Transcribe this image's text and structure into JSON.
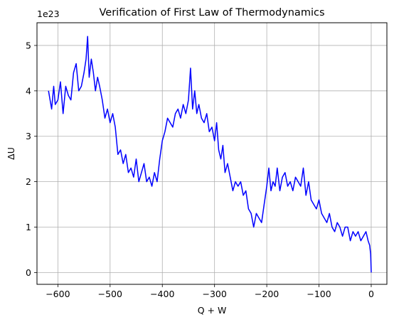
{
  "chart_data": {
    "type": "line",
    "title": "Verification of First Law of Thermodynamics",
    "xlabel": "Q + W",
    "ylabel": "ΔU",
    "y_offset_label": "1e23",
    "y_scale": 1e+23,
    "xlim": [
      -640,
      30
    ],
    "ylim": [
      -0.26,
      5.5
    ],
    "x_ticks": [
      -600,
      -500,
      -400,
      -300,
      -200,
      -100,
      0
    ],
    "x_tick_labels": [
      "−600",
      "−500",
      "−400",
      "−300",
      "−200",
      "−100",
      "0"
    ],
    "y_ticks": [
      0,
      1,
      2,
      3,
      4,
      5
    ],
    "y_tick_labels": [
      "0",
      "1",
      "2",
      "3",
      "4",
      "5"
    ],
    "grid": true,
    "legend": "none",
    "series": [
      {
        "color": "#0000ff",
        "x": [
          -618,
          -612,
          -608,
          -605,
          -600,
          -595,
          -590,
          -585,
          -580,
          -575,
          -570,
          -565,
          -560,
          -555,
          -550,
          -546,
          -543,
          -540,
          -536,
          -532,
          -528,
          -524,
          -520,
          -515,
          -510,
          -505,
          -500,
          -495,
          -490,
          -485,
          -480,
          -475,
          -470,
          -465,
          -460,
          -455,
          -450,
          -445,
          -440,
          -435,
          -430,
          -425,
          -420,
          -415,
          -410,
          -405,
          -400,
          -395,
          -390,
          -385,
          -380,
          -375,
          -370,
          -365,
          -360,
          -355,
          -350,
          -346,
          -342,
          -338,
          -334,
          -330,
          -325,
          -320,
          -315,
          -310,
          -305,
          -300,
          -296,
          -292,
          -288,
          -284,
          -280,
          -275,
          -270,
          -265,
          -260,
          -255,
          -250,
          -245,
          -240,
          -235,
          -230,
          -225,
          -220,
          -215,
          -210,
          -205,
          -200,
          -196,
          -192,
          -188,
          -184,
          -180,
          -175,
          -170,
          -165,
          -160,
          -155,
          -150,
          -145,
          -140,
          -135,
          -130,
          -125,
          -120,
          -115,
          -110,
          -105,
          -100,
          -95,
          -90,
          -85,
          -80,
          -75,
          -70,
          -65,
          -60,
          -55,
          -50,
          -45,
          -40,
          -35,
          -30,
          -25,
          -20,
          -15,
          -10,
          -6,
          -3,
          -1,
          0
        ],
        "y": [
          4.0,
          3.6,
          4.1,
          3.7,
          3.8,
          4.2,
          3.5,
          4.1,
          3.9,
          3.8,
          4.4,
          4.6,
          4.0,
          4.1,
          4.4,
          4.7,
          5.2,
          4.3,
          4.7,
          4.4,
          4.0,
          4.3,
          4.1,
          3.8,
          3.4,
          3.6,
          3.3,
          3.5,
          3.2,
          2.6,
          2.7,
          2.4,
          2.6,
          2.2,
          2.3,
          2.1,
          2.5,
          2.0,
          2.2,
          2.4,
          2.0,
          2.1,
          1.9,
          2.2,
          2.0,
          2.5,
          2.9,
          3.1,
          3.4,
          3.3,
          3.2,
          3.5,
          3.6,
          3.4,
          3.7,
          3.5,
          3.8,
          4.5,
          3.6,
          4.0,
          3.5,
          3.7,
          3.4,
          3.3,
          3.5,
          3.1,
          3.2,
          2.9,
          3.3,
          2.7,
          2.5,
          2.8,
          2.2,
          2.4,
          2.1,
          1.8,
          2.0,
          1.9,
          2.0,
          1.7,
          1.8,
          1.4,
          1.3,
          1.0,
          1.3,
          1.2,
          1.1,
          1.5,
          1.9,
          2.3,
          1.8,
          2.0,
          1.9,
          2.3,
          1.8,
          2.1,
          2.2,
          1.9,
          2.0,
          1.8,
          2.1,
          2.0,
          1.9,
          2.3,
          1.7,
          2.0,
          1.6,
          1.5,
          1.4,
          1.6,
          1.3,
          1.2,
          1.1,
          1.3,
          1.0,
          0.9,
          1.1,
          1.0,
          0.8,
          1.0,
          1.0,
          0.7,
          0.9,
          0.8,
          0.9,
          0.7,
          0.8,
          0.9,
          0.7,
          0.6,
          0.4,
          0.0
        ]
      }
    ]
  }
}
